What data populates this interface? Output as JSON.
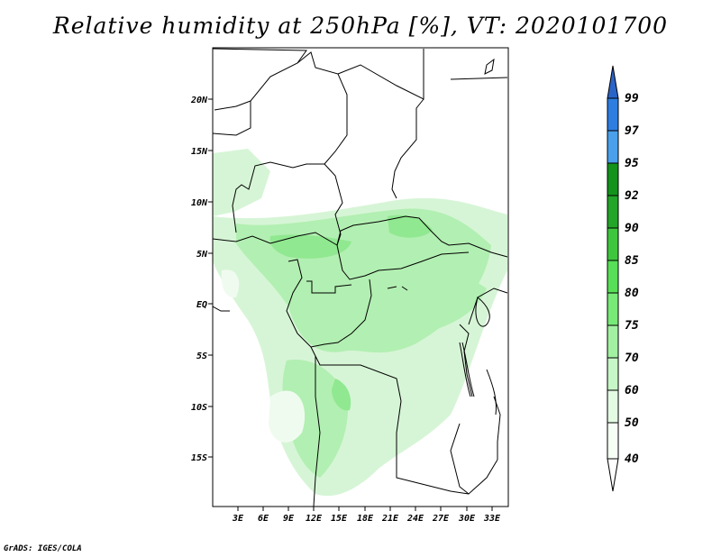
{
  "title": "Relative humidity at 250hPa [%], VT: 2020101700",
  "credit": "GrADS: IGES/COLA",
  "map": {
    "lon_range": [
      0,
      36
    ],
    "lat_range": [
      -20,
      25
    ],
    "lat_ticks": [
      "20N",
      "15N",
      "10N",
      "5N",
      "EQ",
      "5S",
      "10S",
      "15S"
    ],
    "lon_ticks": [
      "3E",
      "6E",
      "9E",
      "12E",
      "15E",
      "18E",
      "21E",
      "24E",
      "27E",
      "30E",
      "33E"
    ]
  },
  "colorbar": {
    "levels": [
      "99",
      "97",
      "95",
      "92",
      "90",
      "85",
      "80",
      "75",
      "70",
      "60",
      "50",
      "40"
    ],
    "colors": [
      "#2a64c8",
      "#2d7ee0",
      "#4aa0ea",
      "#13931b",
      "#23a52a",
      "#3ec73e",
      "#57df57",
      "#78ea78",
      "#a2f1a2",
      "#c7f6c7",
      "#e3fae3",
      "#f6fff6",
      "#ffffff"
    ]
  }
}
